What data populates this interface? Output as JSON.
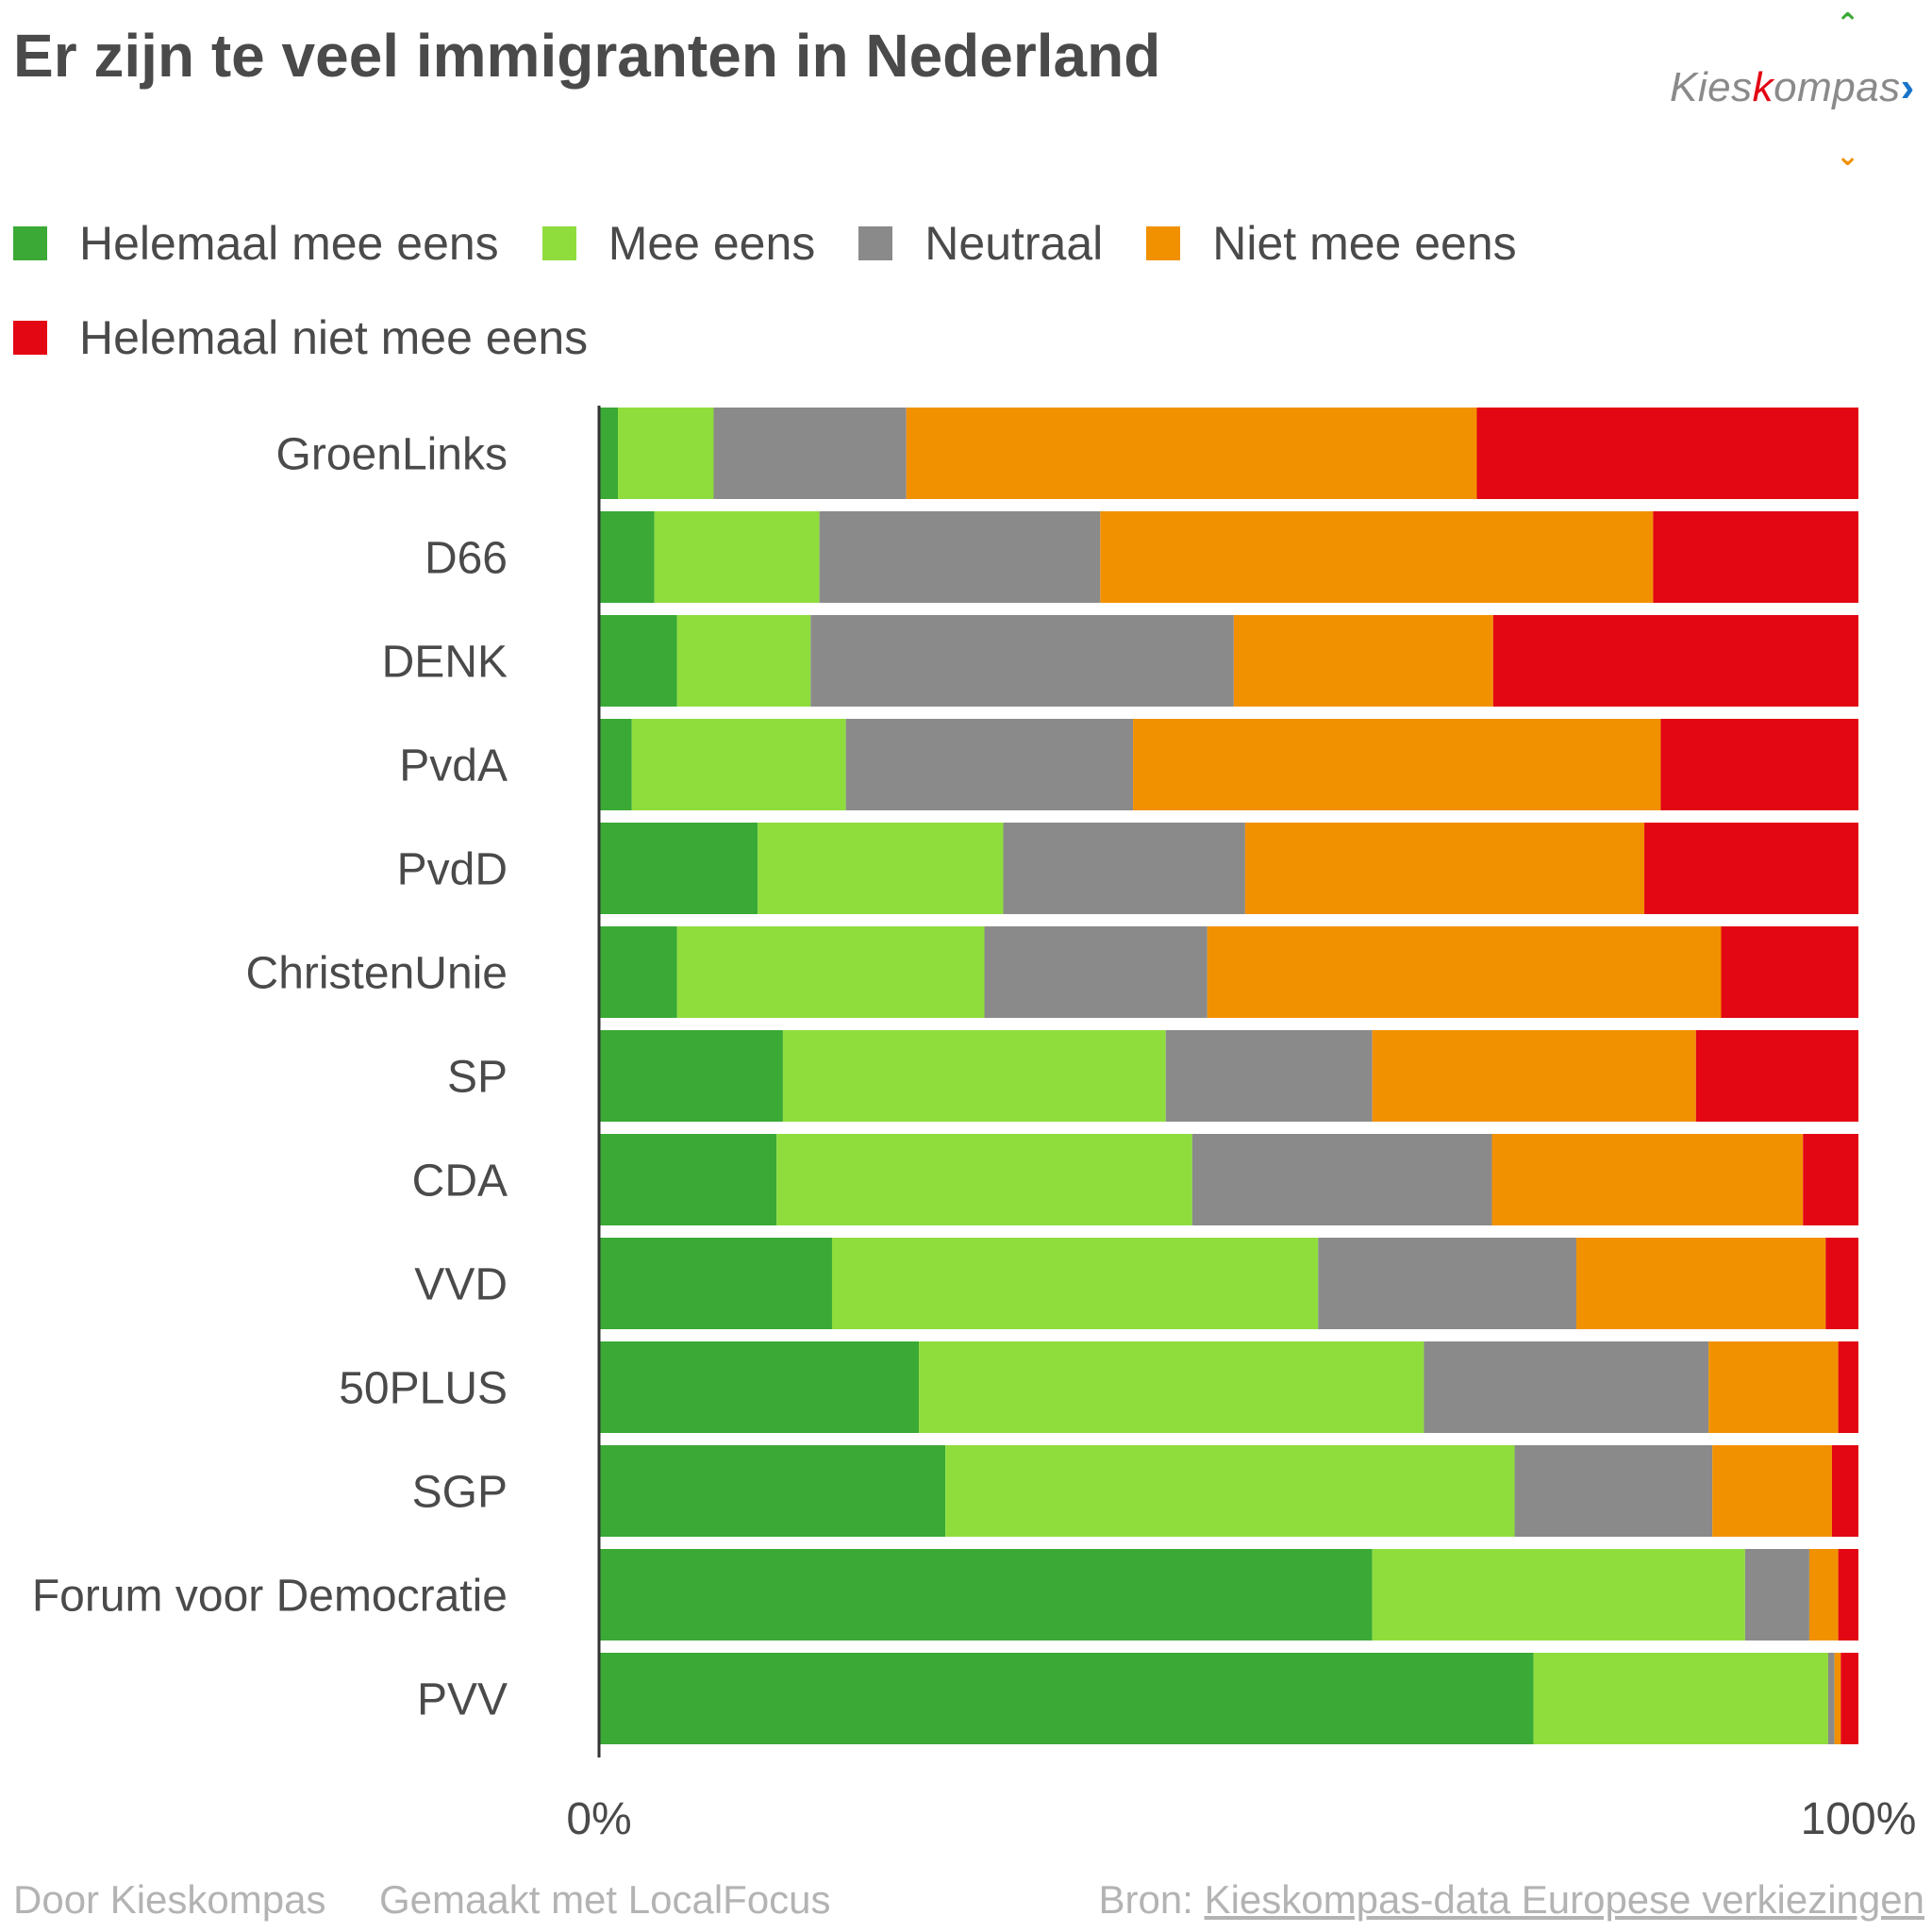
{
  "title": "Er zijn te veel immigranten in Nederland",
  "logo": {
    "part1": "Kies",
    "part2": "k",
    "part3": "ompas",
    "chevron": "›",
    "up_icon": "chevron-up-icon",
    "down_icon": "chevron-down-icon"
  },
  "legend": [
    {
      "label": "Helemaal mee eens",
      "color": "#3aa935"
    },
    {
      "label": "Mee eens",
      "color": "#8fdd3d"
    },
    {
      "label": "Neutraal",
      "color": "#8a8a8a"
    },
    {
      "label": "Niet mee eens",
      "color": "#f29100"
    },
    {
      "label": "Helemaal niet mee eens",
      "color": "#e30613"
    }
  ],
  "chart_data": {
    "type": "bar",
    "orientation": "horizontal",
    "stacked": true,
    "normalized": true,
    "categories": [
      "GroenLinks",
      "D66",
      "DENK",
      "PvdA",
      "PvdD",
      "ChristenUnie",
      "SP",
      "CDA",
      "VVD",
      "50PLUS",
      "SGP",
      "Forum voor Democratie",
      "PVV"
    ],
    "series": [
      {
        "name": "Helemaal mee eens",
        "color": "#3aa935",
        "values": [
          1.5,
          4.4,
          6.2,
          2.6,
          12.6,
          6.2,
          14.6,
          14.1,
          18.5,
          25.4,
          27.5,
          61.4,
          74.2
        ]
      },
      {
        "name": "Mee eens",
        "color": "#8fdd3d",
        "values": [
          7.6,
          13.1,
          10.6,
          17.0,
          19.5,
          24.4,
          30.4,
          33.0,
          38.6,
          40.1,
          45.2,
          29.6,
          23.4
        ]
      },
      {
        "name": "Neutraal",
        "color": "#8a8a8a",
        "values": [
          15.3,
          22.3,
          33.6,
          22.8,
          19.2,
          17.7,
          16.4,
          23.8,
          20.5,
          22.6,
          15.7,
          5.1,
          0.5
        ]
      },
      {
        "name": "Niet mee eens",
        "color": "#f29100",
        "values": [
          45.3,
          43.9,
          20.6,
          41.9,
          31.7,
          40.8,
          25.7,
          24.7,
          19.8,
          10.3,
          9.5,
          2.3,
          0.5
        ]
      },
      {
        "name": "Helemaal niet mee eens",
        "color": "#e30613",
        "values": [
          30.3,
          16.3,
          29.0,
          15.7,
          17.0,
          10.9,
          12.9,
          4.4,
          2.6,
          1.6,
          2.1,
          1.6,
          1.4
        ]
      }
    ],
    "xlim": [
      0,
      100
    ],
    "xticks": [
      "0%",
      "100%"
    ],
    "legend_position": "top-left",
    "grid": false
  },
  "footer": {
    "by": "Door Kieskompas",
    "made_with": "Gemaakt met LocalFocus",
    "source_label": "Bron:",
    "source_link": "Kieskompas-data Europese verkiezingen"
  }
}
